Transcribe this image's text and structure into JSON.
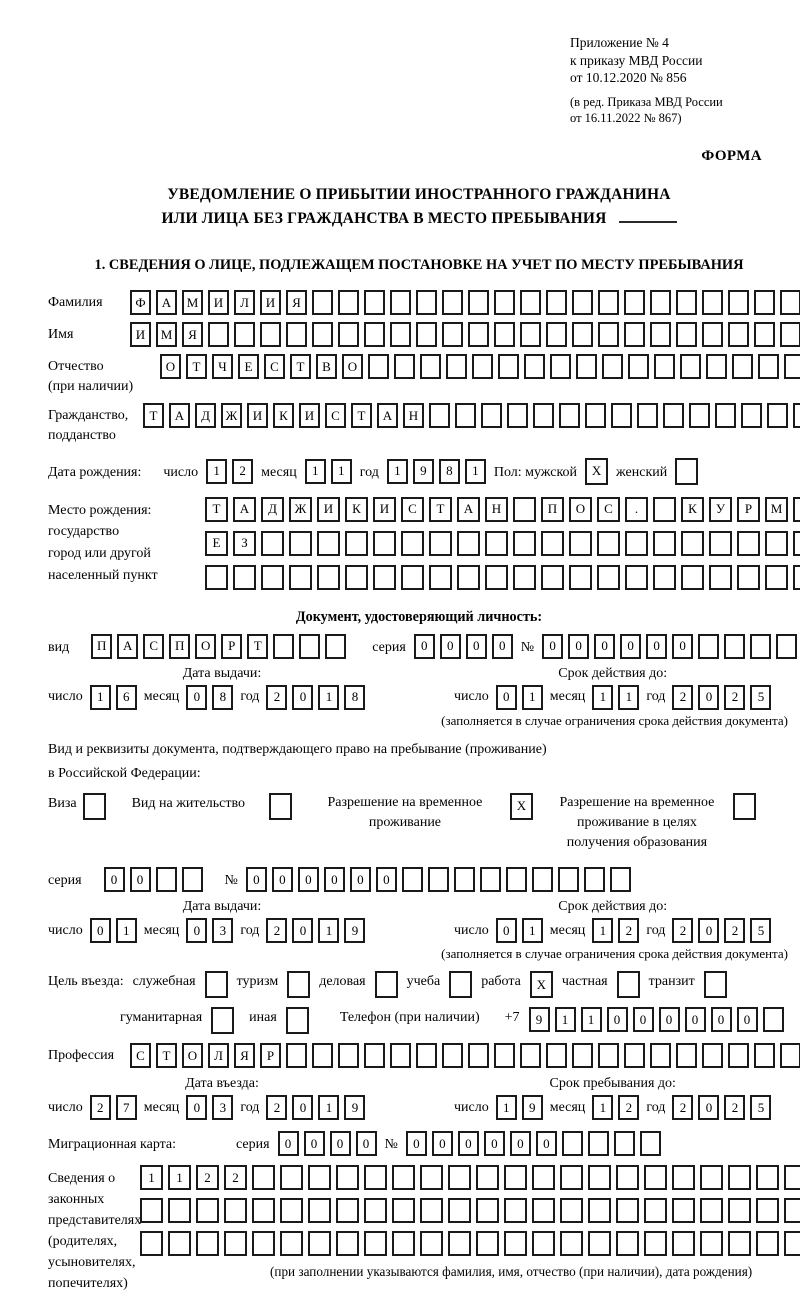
{
  "header": {
    "lines": [
      "Приложение № 4",
      "к приказу МВД России",
      "от 10.12.2020 № 856"
    ],
    "sub_lines": [
      "(в ред. Приказа МВД России",
      "от 16.11.2022 № 867)"
    ],
    "forma": "ФОРМА"
  },
  "title": {
    "line1": "УВЕДОМЛЕНИЕ О ПРИБЫТИИ ИНОСТРАННОГО ГРАЖДАНИНА",
    "line2": "ИЛИ ЛИЦА БЕЗ ГРАЖДАНСТВА В МЕСТО ПРЕБЫВАНИЯ"
  },
  "section1": "1. СВЕДЕНИЯ О ЛИЦЕ, ПОДЛЕЖАЩЕМ ПОСТАНОВКЕ НА УЧЕТ ПО МЕСТУ ПРЕБЫВАНИЯ",
  "date_labels": {
    "day": "число",
    "month": "месяц",
    "year": "год"
  },
  "fields": {
    "surname": {
      "label": "Фамилия",
      "boxes": {
        "chars": "ФАМИЛИЯ",
        "count": 30
      }
    },
    "name": {
      "label": "Имя",
      "boxes": {
        "chars": "ИМЯ",
        "count": 30
      }
    },
    "patronymic": {
      "label": "Отчество",
      "label2": "(при наличии)",
      "boxes": {
        "chars": "ОТЧЕСТВО",
        "count": 28
      }
    },
    "citizenship": {
      "label": "Гражданство,",
      "label2": "подданство",
      "boxes": {
        "chars": "ТАДЖИКИСТАН",
        "count": 28
      }
    },
    "birth_date": {
      "label": "Дата рождения:",
      "d": {
        "chars": "12",
        "count": 2
      },
      "m": {
        "chars": "11",
        "count": 2
      },
      "y": {
        "chars": "1981",
        "count": 4
      },
      "sex_label": "Пол: мужской",
      "male_box": {
        "chars": "X",
        "count": 1
      },
      "female_label": "женский",
      "female_box": {
        "chars": "",
        "count": 1
      }
    },
    "birth_place": {
      "labels": [
        "Место рождения:",
        "государство",
        "город или другой",
        "населенный пункт"
      ],
      "row1": {
        "chars": "ТАДЖИКИСТАН ПОС. КУРМОМБ",
        "count": 24
      },
      "row2": {
        "chars": "ЕЗ",
        "count": 24
      },
      "row3": {
        "chars": "",
        "count": 24
      }
    },
    "identity_doc": {
      "heading": "Документ, удостоверяющий личность:",
      "kind_label": "вид",
      "kind": {
        "chars": "ПАСПОРТ",
        "count": 10
      },
      "series_label": "серия",
      "series": {
        "chars": "0000",
        "count": 4
      },
      "number_label": "№",
      "number": {
        "chars": "000000",
        "count": 11
      },
      "issue_label": "Дата выдачи:",
      "issue_d": {
        "chars": "16",
        "count": 2
      },
      "issue_m": {
        "chars": "08",
        "count": 2
      },
      "issue_y": {
        "chars": "2018",
        "count": 4
      },
      "valid_label": "Срок действия до:",
      "valid_d": {
        "chars": "01",
        "count": 2
      },
      "valid_m": {
        "chars": "11",
        "count": 2
      },
      "valid_y": {
        "chars": "2025",
        "count": 4
      },
      "note": "(заполняется в случае ограничения срока действия документа)"
    },
    "residence_doc": {
      "intro1": "Вид и реквизиты документа, подтверждающего право на пребывание (проживание)",
      "intro2": "в Российской Федерации:",
      "opt1_label": "Виза",
      "opt1_box": {
        "chars": "",
        "count": 1
      },
      "opt2_label": "Вид на жительство",
      "opt2_box": {
        "chars": "",
        "count": 1
      },
      "opt3_label": "Разрешение на временное проживание",
      "opt3_box": {
        "chars": "X",
        "count": 1
      },
      "opt4_label": "Разрешение на временное проживание в целях получения образования",
      "opt4_box": {
        "chars": "",
        "count": 1
      },
      "series_label": "серия",
      "series": {
        "chars": "00",
        "count": 4
      },
      "number_label": "№",
      "number": {
        "chars": "000000",
        "count": 15
      },
      "issue_label": "Дата выдачи:",
      "issue_d": {
        "chars": "01",
        "count": 2
      },
      "issue_m": {
        "chars": "03",
        "count": 2
      },
      "issue_y": {
        "chars": "2019",
        "count": 4
      },
      "valid_label": "Срок действия до:",
      "valid_d": {
        "chars": "01",
        "count": 2
      },
      "valid_m": {
        "chars": "12",
        "count": 2
      },
      "valid_y": {
        "chars": "2025",
        "count": 4
      },
      "note": "(заполняется в случае ограничения срока действия документа)"
    },
    "purpose": {
      "label": "Цель въезда:",
      "opt1_label": "служебная",
      "opt1_box": {
        "chars": "",
        "count": 1
      },
      "opt2_label": "туризм",
      "opt2_box": {
        "chars": "",
        "count": 1
      },
      "opt3_label": "деловая",
      "opt3_box": {
        "chars": "",
        "count": 1
      },
      "opt4_label": "учеба",
      "opt4_box": {
        "chars": "",
        "count": 1
      },
      "opt5_label": "работа",
      "opt5_box": {
        "chars": "X",
        "count": 1
      },
      "opt6_label": "частная",
      "opt6_box": {
        "chars": "",
        "count": 1
      },
      "opt7_label": "транзит",
      "opt7_box": {
        "chars": "",
        "count": 1
      },
      "opt8_label": "гуманитарная",
      "opt8_box": {
        "chars": "",
        "count": 1
      },
      "opt9_label": "иная",
      "opt9_box": {
        "chars": "",
        "count": 1
      },
      "phone_label": "Телефон (при наличии)",
      "phone_prefix": "+7",
      "phone": {
        "chars": "911000000",
        "count": 10
      }
    },
    "profession": {
      "label": "Профессия",
      "boxes": {
        "chars": "СТОЛЯР",
        "count": 30
      }
    },
    "entry": {
      "entry_label": "Дата въезда:",
      "entry_d": {
        "chars": "27",
        "count": 2
      },
      "entry_m": {
        "chars": "03",
        "count": 2
      },
      "entry_y": {
        "chars": "2019",
        "count": 4
      },
      "stay_label": "Срок пребывания до:",
      "stay_d": {
        "chars": "19",
        "count": 2
      },
      "stay_m": {
        "chars": "12",
        "count": 2
      },
      "stay_y": {
        "chars": "2025",
        "count": 4
      }
    },
    "migration_card": {
      "label": "Миграционная карта:",
      "series_label": "серия",
      "series": {
        "chars": "0000",
        "count": 4
      },
      "number_label": "№",
      "number": {
        "chars": "000000",
        "count": 10
      }
    },
    "representatives": {
      "labels": [
        "Сведения о",
        "законных",
        "представителях",
        "(родителях,",
        "усыновителях,",
        "попечителях)"
      ],
      "row1": {
        "chars": "1122",
        "count": 26
      },
      "row2": {
        "chars": "",
        "count": 26
      },
      "row3": {
        "chars": "",
        "count": 26
      },
      "note": "(при заполнении указываются фамилия, имя, отчество (при наличии), дата рождения)"
    }
  }
}
